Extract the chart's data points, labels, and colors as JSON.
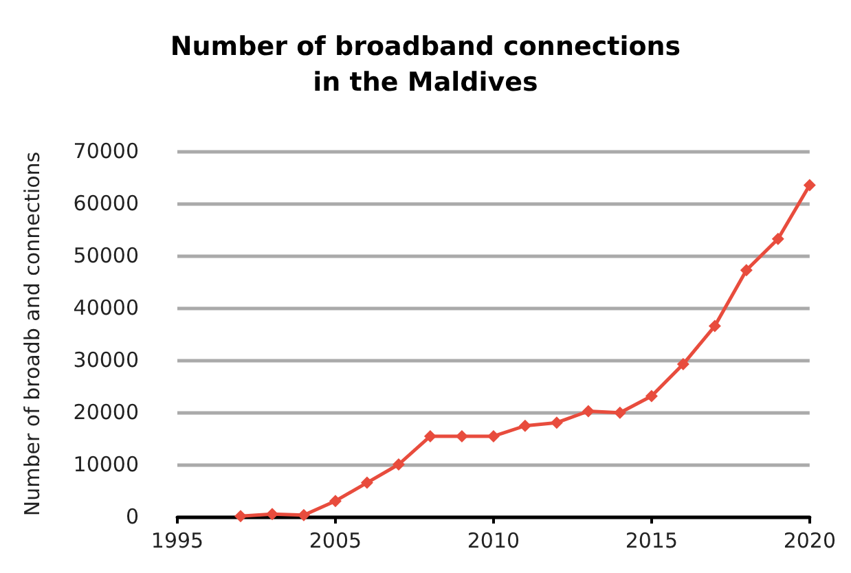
{
  "chart_data": {
    "type": "line",
    "title": "Number of broadband connections\nin the Maldives",
    "ylabel": "Number of broadb and connections",
    "categories": [
      "1995",
      null,
      null,
      null,
      null,
      "2005",
      null,
      null,
      null,
      null,
      "2010",
      null,
      null,
      null,
      null,
      "2015",
      null,
      null,
      null,
      null,
      "2020"
    ],
    "series": [
      {
        "color": "#e84c3d",
        "values": [
          null,
          null,
          100,
          500,
          300,
          3000,
          6500,
          10000,
          15400,
          15400,
          15400,
          17400,
          18000,
          20200,
          19900,
          23100,
          29200,
          36500,
          47200,
          53200,
          63500
        ]
      }
    ],
    "ylim": [
      0,
      70000
    ],
    "yticks": [
      0,
      10000,
      20000,
      30000,
      40000,
      50000,
      60000,
      70000
    ],
    "grid": "y",
    "marker": "diamond",
    "line_style": "solid"
  }
}
